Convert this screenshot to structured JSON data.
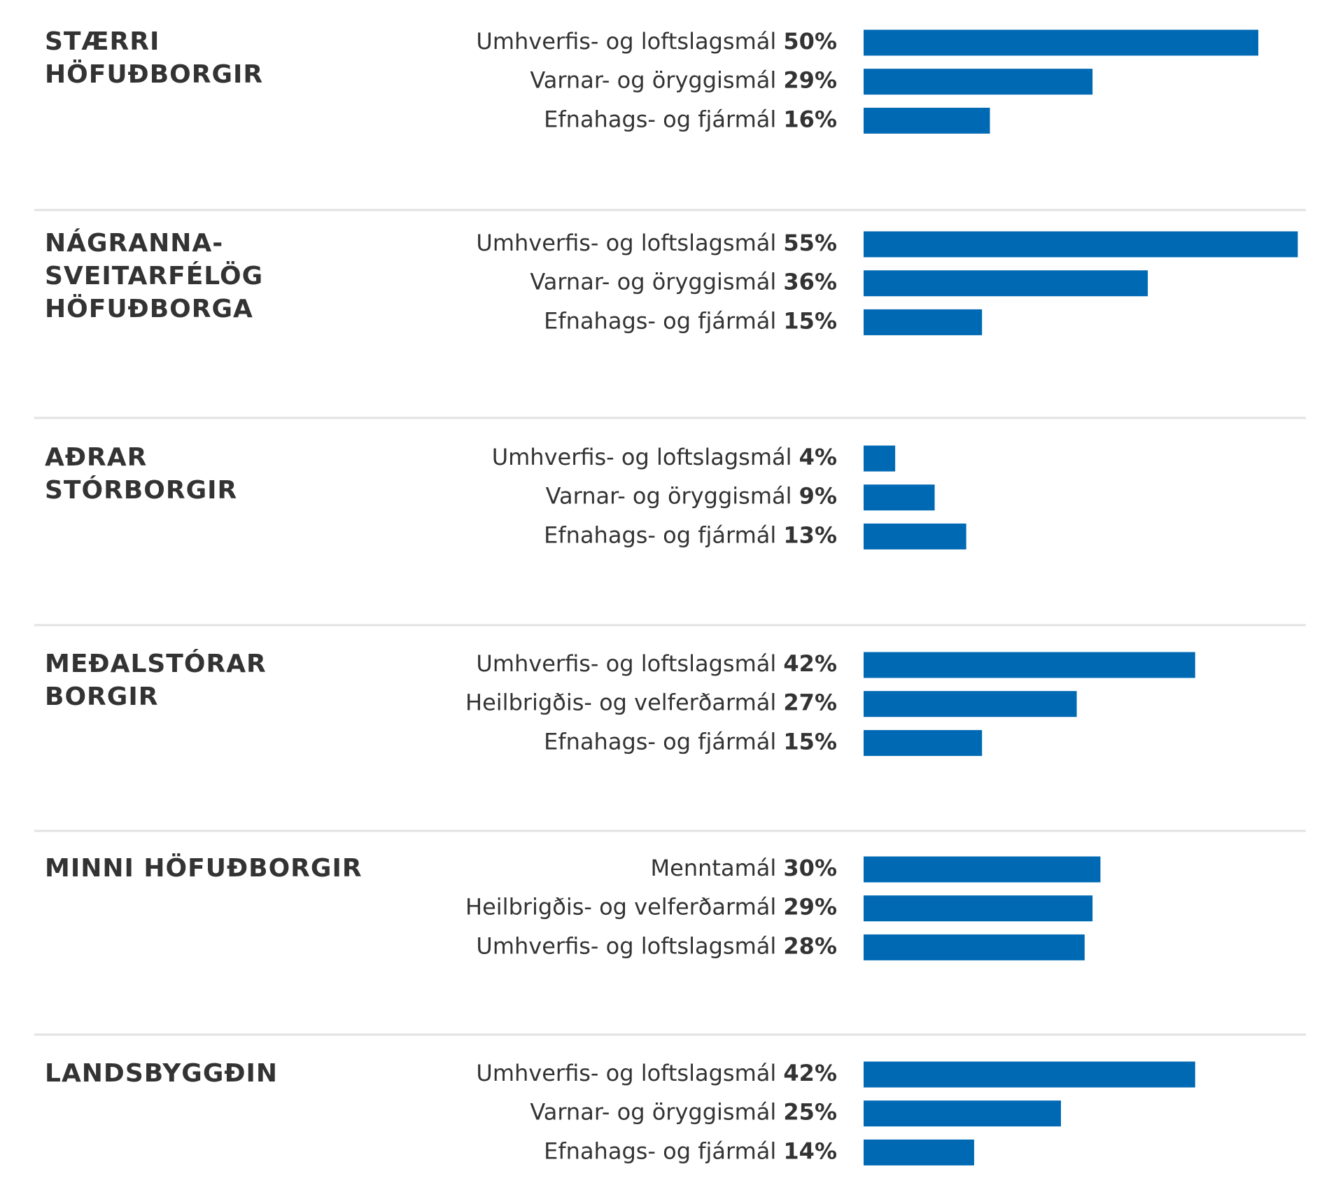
{
  "chart_data": [
    {
      "type": "bar",
      "title": [
        "STÆRRI",
        "HÖFUÐBORGIR"
      ],
      "color": "#0069b4",
      "categories": [
        "Umhverfis- og loftslagsmál",
        "Varnar- og öryggismál",
        "Efnahags- og fjármál"
      ],
      "values": [
        50,
        29,
        16
      ],
      "value_labels": [
        "50%",
        "29%",
        "16%"
      ]
    },
    {
      "type": "bar",
      "title": [
        "NÁGRANNA-",
        "SVEITARFÉLÖG",
        "HÖFUÐBORGA"
      ],
      "color": "#0069b4",
      "categories": [
        "Umhverfis- og loftslagsmál",
        "Varnar- og öryggismál",
        "Efnahags- og fjármál"
      ],
      "values": [
        55,
        36,
        15
      ],
      "value_labels": [
        "55%",
        "36%",
        "15%"
      ]
    },
    {
      "type": "bar",
      "title": [
        "AÐRAR",
        "STÓRBORGIR"
      ],
      "color": "#0069b4",
      "categories": [
        "Umhverfis- og loftslagsmál",
        "Varnar- og öryggismál",
        "Efnahags- og fjármál"
      ],
      "values": [
        4,
        9,
        13
      ],
      "value_labels": [
        "4%",
        "9%",
        "13%"
      ]
    },
    {
      "type": "bar",
      "title": [
        "MEÐALSTÓRAR",
        "BORGIR"
      ],
      "color": "#0069b4",
      "categories": [
        "Umhverfis- og loftslagsmál",
        "Heilbrigðis- og velferðarmál",
        "Efnahags- og fjármál"
      ],
      "values": [
        42,
        27,
        15
      ],
      "value_labels": [
        "42%",
        "27%",
        "15%"
      ]
    },
    {
      "type": "bar",
      "title": [
        "MINNI HÖFUÐBORGIR"
      ],
      "color": "#0069b4",
      "categories": [
        "Menntamál",
        "Heilbrigðis- og velferðarmál",
        "Umhverfis- og loftslagsmál"
      ],
      "values": [
        30,
        29,
        28
      ],
      "value_labels": [
        "30%",
        "29%",
        "28%"
      ]
    },
    {
      "type": "bar",
      "title": [
        "LANDSBYGGÐIN"
      ],
      "color": "#0069b4",
      "categories": [
        "Umhverfis- og loftslagsmál",
        "Varnar- og öryggismál",
        "Efnahags- og fjármál"
      ],
      "values": [
        42,
        25,
        14
      ],
      "value_labels": [
        "42%",
        "25%",
        "14%"
      ]
    }
  ]
}
